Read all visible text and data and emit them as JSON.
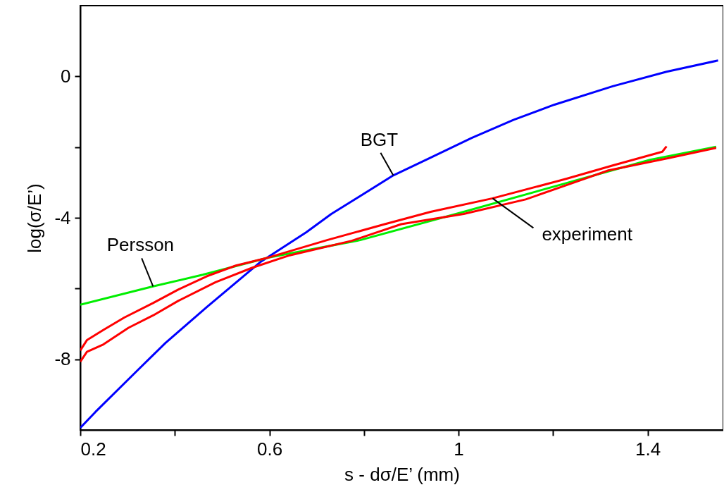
{
  "chart_data": {
    "type": "line",
    "xlabel": "s - dσ/E’ (mm)",
    "ylabel": "log(σ/E’)",
    "xlim": [
      0.2,
      1.56
    ],
    "ylim": [
      -10,
      2
    ],
    "xticks": [
      0.2,
      {
        "value": 0.4,
        "label": null
      },
      0.6,
      {
        "value": 0.8,
        "label": null
      },
      1,
      {
        "value": 1.2,
        "label": null
      },
      1.4
    ],
    "yticks": [
      {
        "value": -8,
        "label": "-8"
      },
      {
        "value": -6,
        "label": null
      },
      {
        "value": -4,
        "label": "-4"
      },
      {
        "value": -2,
        "label": null
      },
      0
    ],
    "grid": false,
    "marker": "none",
    "line_style": "solid",
    "series": [
      {
        "color": "#0000ff",
        "x": [
          0.2,
          0.232,
          0.319,
          0.38,
          0.468,
          0.582,
          0.678,
          0.731,
          0.862,
          0.941,
          1.028,
          1.116,
          1.203,
          1.326,
          1.44,
          1.549
        ],
        "values": [
          -9.94,
          -9.49,
          -8.34,
          -7.54,
          -6.52,
          -5.24,
          -4.41,
          -3.89,
          -2.8,
          -2.3,
          -1.74,
          -1.23,
          -0.8,
          -0.28,
          0.13,
          0.45
        ]
      },
      {
        "color": "#00ee00",
        "x": [
          0.2,
          0.354,
          0.459,
          0.599,
          0.792,
          1.011,
          1.23,
          1.405,
          1.545
        ],
        "values": [
          -6.46,
          -5.94,
          -5.61,
          -5.12,
          -4.63,
          -3.83,
          -3.01,
          -2.36,
          -1.99
        ]
      },
      {
        "color": "#ff0000",
        "x": [
          0.2,
          0.214,
          0.249,
          0.293,
          0.354,
          0.407,
          0.468,
          0.529,
          0.599,
          0.722,
          0.844,
          0.941,
          1.072,
          1.23,
          1.326,
          1.431,
          1.44
        ],
        "values": [
          -7.75,
          -7.46,
          -7.17,
          -6.82,
          -6.41,
          -6.03,
          -5.65,
          -5.35,
          -5.12,
          -4.63,
          -4.18,
          -3.83,
          -3.45,
          -2.89,
          -2.52,
          -2.13,
          -1.98
        ]
      },
      {
        "color": "#ff0000",
        "x": [
          0.2,
          0.214,
          0.249,
          0.302,
          0.354,
          0.407,
          0.486,
          0.564,
          0.643,
          0.774,
          0.879,
          1.011,
          1.142,
          1.317,
          1.448,
          1.545
        ],
        "values": [
          -8.07,
          -7.79,
          -7.58,
          -7.11,
          -6.76,
          -6.35,
          -5.82,
          -5.41,
          -5.06,
          -4.65,
          -4.18,
          -3.89,
          -3.48,
          -2.66,
          -2.3,
          -2.02
        ]
      }
    ],
    "annotations": [
      {
        "text": "BGT",
        "x": 0.862,
        "y": -2.8
      },
      {
        "text": "Persson",
        "x": 0.354,
        "y": -5.94
      },
      {
        "text": "experiment",
        "x": 1.072,
        "y": -3.45
      }
    ]
  }
}
